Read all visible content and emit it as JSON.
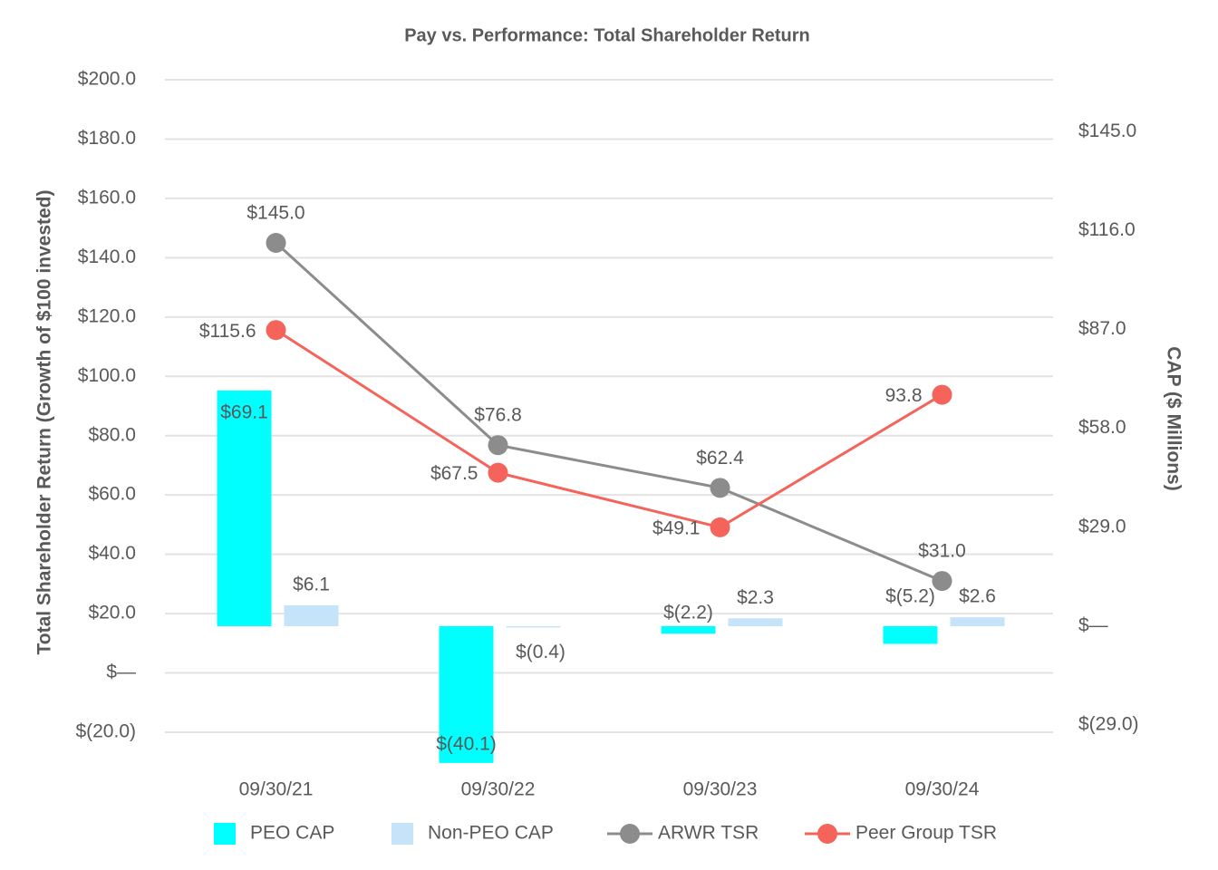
{
  "chart_data": {
    "type": "bar-line",
    "title": "Pay vs. Performance: Total Shareholder Return",
    "y_label": "Total Shareholder Return (Growth of $100 invested)",
    "y2_label": "CAP ($ Millions)",
    "categories": [
      "09/30/21",
      "09/30/22",
      "09/30/23",
      "09/30/24"
    ],
    "ylim": [
      -20,
      200
    ],
    "yticks": [
      {
        "value": -20,
        "label": "$(20.0)"
      },
      {
        "value": 0,
        "label": "$—"
      },
      {
        "value": 20,
        "label": "$20.0"
      },
      {
        "value": 40,
        "label": "$40.0"
      },
      {
        "value": 60,
        "label": "$60.0"
      },
      {
        "value": 80,
        "label": "$80.0"
      },
      {
        "value": 100,
        "label": "$100.0"
      },
      {
        "value": 120,
        "label": "$120.0"
      },
      {
        "value": 140,
        "label": "$140.0"
      },
      {
        "value": 160,
        "label": "$160.0"
      },
      {
        "value": 180,
        "label": "$180.0"
      },
      {
        "value": 200,
        "label": "$200.0"
      }
    ],
    "y2lim": [
      -31.1,
      160.2
    ],
    "y2ticks": [
      {
        "value": -29,
        "label": "$(29.0)"
      },
      {
        "value": 0,
        "label": "$—"
      },
      {
        "value": 29,
        "label": "$29.0"
      },
      {
        "value": 58,
        "label": "$58.0"
      },
      {
        "value": 87,
        "label": "$87.0"
      },
      {
        "value": 116,
        "label": "$116.0"
      },
      {
        "value": 145,
        "label": "$145.0"
      }
    ],
    "grid": true,
    "series": [
      {
        "name": "PEO CAP",
        "type": "bar",
        "axis": "y2",
        "color": "#00ffff",
        "values": [
          69.1,
          -40.1,
          -2.2,
          -5.2
        ],
        "value_labels": [
          "$69.1",
          "$(40.1)",
          "$(2.2)",
          "$(5.2)"
        ]
      },
      {
        "name": "Non-PEO CAP",
        "type": "bar",
        "axis": "y2",
        "color": "#c5e3f9",
        "values": [
          6.1,
          -0.4,
          2.3,
          2.6
        ],
        "value_labels": [
          "$6.1",
          "$(0.4)",
          "$2.3",
          "$2.6"
        ]
      },
      {
        "name": "ARWR TSR",
        "type": "line",
        "color": "#8c8c8c",
        "values": [
          145.0,
          76.8,
          62.4,
          31.0
        ],
        "value_labels": [
          "$145.0",
          "$76.8",
          "$62.4",
          "$31.0"
        ]
      },
      {
        "name": "Peer Group TSR",
        "type": "line",
        "color": "#f4645a",
        "values": [
          115.6,
          67.5,
          49.1,
          93.8
        ],
        "value_labels": [
          "$115.6",
          "$67.5",
          "$49.1",
          "93.8"
        ]
      }
    ]
  }
}
